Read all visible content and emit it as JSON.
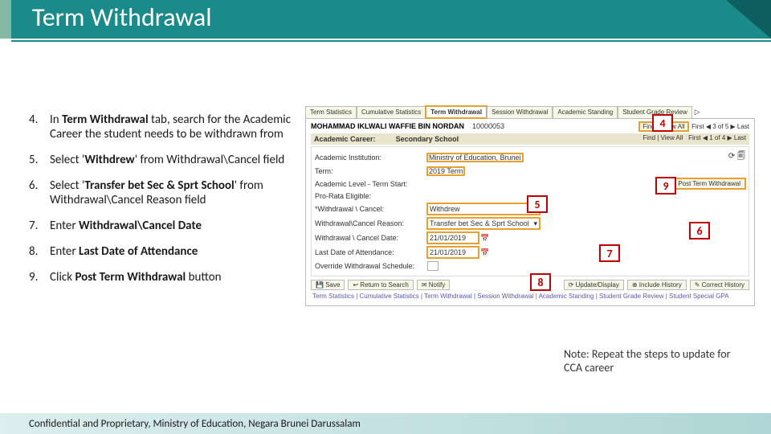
{
  "title": "Term Withdrawal",
  "steps": [
    {
      "n": "4.",
      "html": "In <b>Term Withdrawal</b> tab, search for the Academic Career the student needs to be withdrawn from"
    },
    {
      "n": "5.",
      "html": "Select '<b>Withdrew</b>' from Withdrawal\\Cancel field"
    },
    {
      "n": "6.",
      "html": "Select '<b>Transfer bet Sec & Sprt School</b>' from Withdrawal\\Cancel Reason field"
    },
    {
      "n": "7.",
      "html": "Enter <b>Withdrawal\\Cancel Date</b>"
    },
    {
      "n": "8.",
      "html": "Enter <b>Last Date of Attendance</b>"
    },
    {
      "n": "9.",
      "html": "Click <b>Post Term Withdrawal</b> button"
    }
  ],
  "tabs": [
    "Term Statistics",
    "Cumulative Statistics",
    "Term Withdrawal",
    "Session Withdrawal",
    "Academic Standing",
    "Student Grade Review"
  ],
  "student_name": "MOHAMMAD IKLWALI WAFFIE BIN NORDAN",
  "student_id": "10000053",
  "nav_top": {
    "find": "Find",
    "viewall": "View All",
    "first": "First",
    "pos": "3 of 5",
    "last": "Last"
  },
  "academic_career": {
    "label": "Academic Career:",
    "value": "Secondary School"
  },
  "nav_inner": {
    "find": "Find | View All",
    "first": "First",
    "pos": "1 of 4",
    "last": "Last"
  },
  "fields": {
    "institution": {
      "label": "Academic Institution:",
      "value": "Ministry of Education, Brunei"
    },
    "term": {
      "label": "Term:",
      "value": "2019 Term"
    },
    "level": {
      "label": "Academic Level - Term Start:",
      "value": ""
    },
    "prorata": {
      "label": "Pro-Rata Eligible:",
      "value": ""
    },
    "wcancel": {
      "label": "*Withdrawal \\ Cancel:",
      "value": "Withdrew"
    },
    "wreason": {
      "label": "Withdrawal\\Cancel Reason:",
      "value": "Transfer bet Sec & Sprt School"
    },
    "wdate": {
      "label": "Withdrawal \\ Cancel Date:",
      "value": "21/01/2019"
    },
    "lastdate": {
      "label": "Last Date of Attendance:",
      "value": "21/01/2019"
    },
    "override": {
      "label": "Override Withdrawal Schedule:",
      "value": ""
    }
  },
  "post_button": "Post Term Withdrawal",
  "bottom_buttons": {
    "save": "Save",
    "return": "Return to Search",
    "notify": "Notify",
    "update": "Update/Display",
    "include": "Include History",
    "correct": "Correct History"
  },
  "breadcrumb": "Term Statistics | Cumulative Statistics | Term Withdrawal | Session Withdrawal | Academic Standing | Student Grade Review | Student Special GPA",
  "callouts": {
    "c4": "4",
    "c5": "5",
    "c6": "6",
    "c7": "7",
    "c8": "8",
    "c9": "9"
  },
  "note": "Note: Repeat the steps to update for CCA career",
  "footer": "Confidential and Proprietary, Ministry of Education, Negara Brunei Darussalam"
}
